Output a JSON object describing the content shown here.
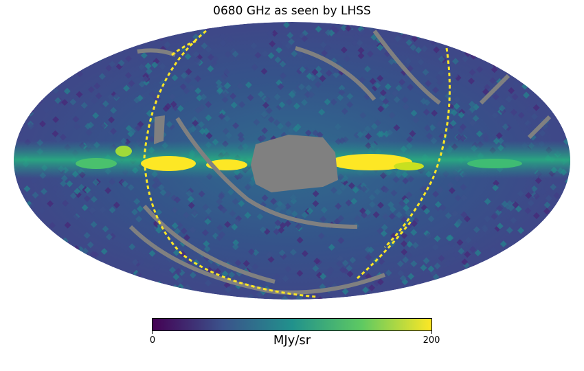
{
  "title": "0680 GHz as seen by LHSS",
  "colorbar": {
    "min_label": "0",
    "max_label": "200",
    "unit": "MJy/sr",
    "colormap": [
      "#440154",
      "#3b528b",
      "#21918c",
      "#5ec962",
      "#fde725"
    ]
  },
  "map": {
    "projection": "mollweide",
    "masked_color": "#808080",
    "background_color": "#3a5a8c"
  }
}
